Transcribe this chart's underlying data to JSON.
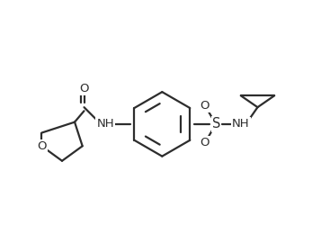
{
  "bg_color": "#ffffff",
  "line_color": "#2d2d2d",
  "line_width": 1.6,
  "font_size": 9.5,
  "figsize": [
    3.47,
    2.7
  ],
  "dpi": 100,
  "xlim": [
    0,
    10
  ],
  "ylim": [
    0,
    7.77
  ]
}
